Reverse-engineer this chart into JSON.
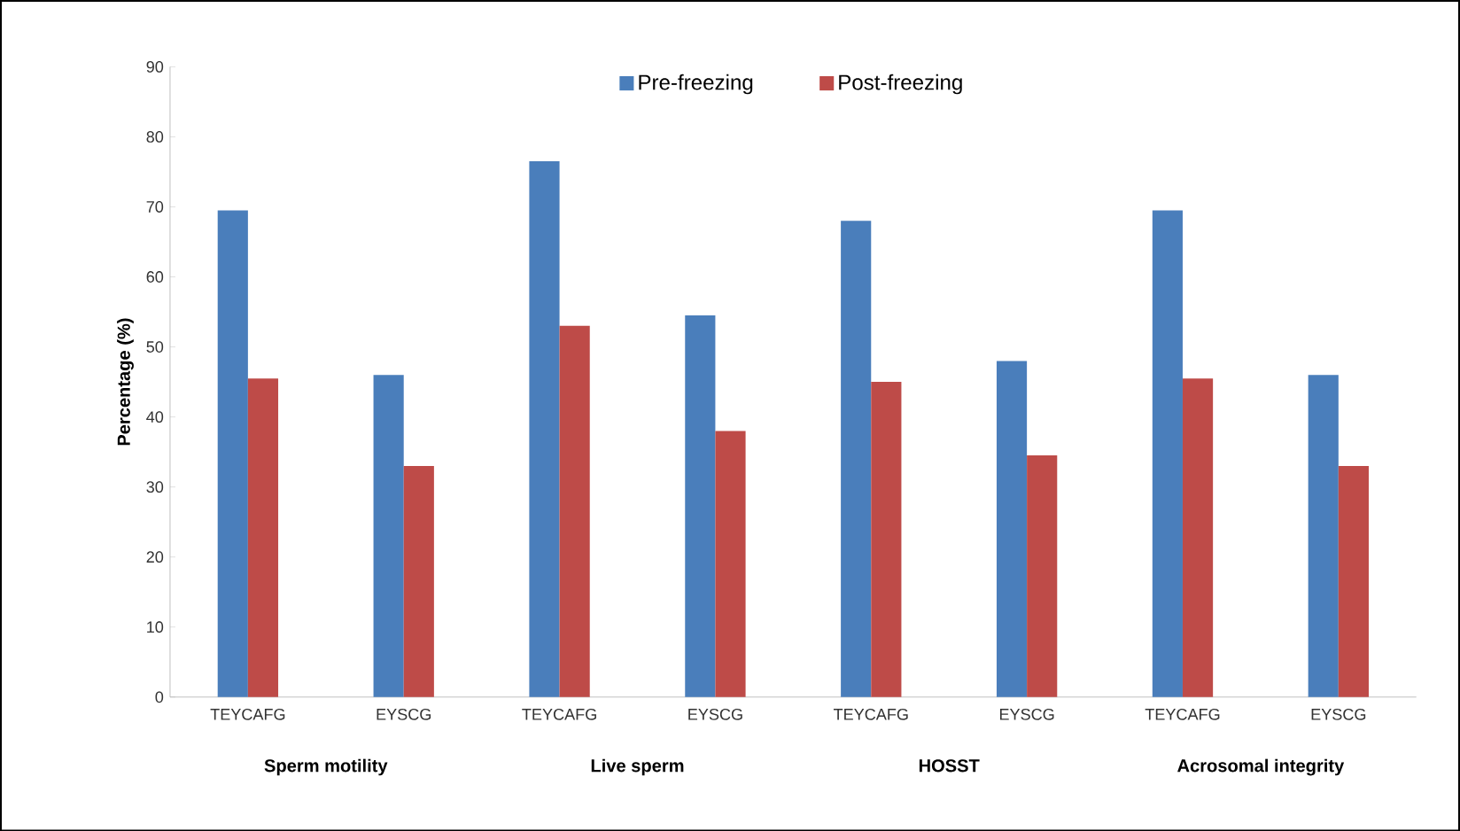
{
  "chart_data": {
    "type": "bar",
    "ylabel": "Percentage (%)",
    "categories": [
      "TEYCAFG",
      "EYSCG",
      "TEYCAFG",
      "EYSCG",
      "TEYCAFG",
      "EYSCG",
      "TEYCAFG",
      "EYSCG"
    ],
    "series": [
      {
        "name": "Pre-freezing",
        "color": "#4a7ebb",
        "values": [
          69.5,
          46,
          76.5,
          54.5,
          68,
          48,
          69.5,
          46
        ]
      },
      {
        "name": "Post-freezing",
        "color": "#be4b48",
        "values": [
          45.5,
          33,
          53,
          38,
          45,
          34.5,
          45.5,
          33
        ]
      }
    ],
    "ylim": [
      0,
      90
    ],
    "yticks": [
      0,
      10,
      20,
      30,
      40,
      50,
      60,
      70,
      80,
      90
    ],
    "grid": false,
    "legend": "top",
    "annotations": [
      "Sperm motility",
      "Live sperm",
      "HOSST",
      "Acrosomal integrity"
    ]
  }
}
